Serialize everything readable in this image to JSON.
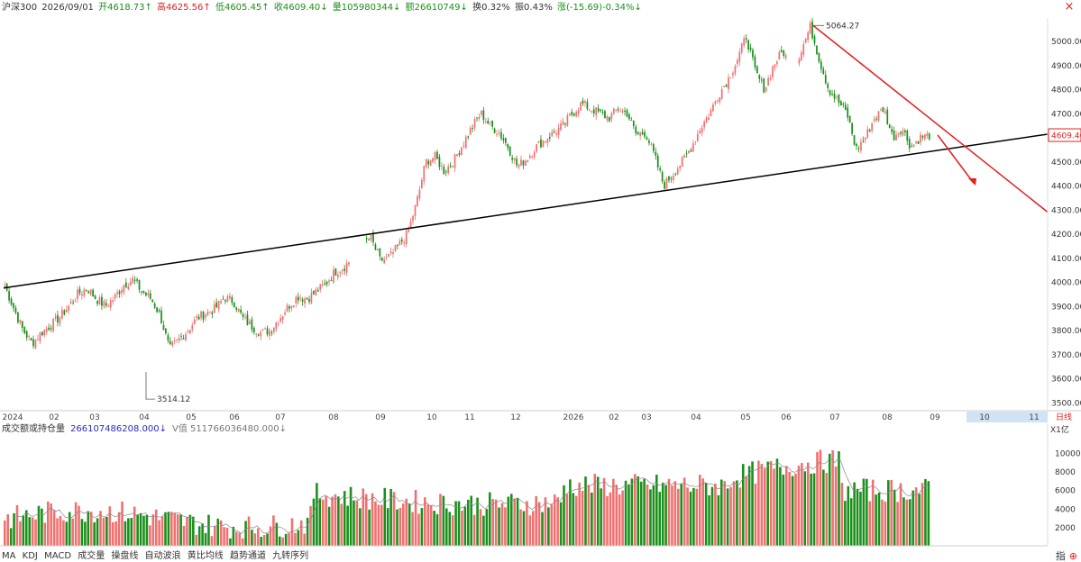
{
  "header": {
    "symbol": "沪深300",
    "date": "2026/09/01",
    "open": "开4618.73↑",
    "high": "高4625.56↑",
    "low": "低4605.45↑",
    "close": "收4609.40↓",
    "volume": "量105980344↓",
    "amount": "额26610749↓",
    "turnover": "换0.32%",
    "amplitude": "振0.43%",
    "change": "涨(-15.69)-0.34%↓"
  },
  "colors": {
    "up": "#f07070",
    "down": "#1a8f1a",
    "trend_black": "#000000",
    "trend_red": "#e02020",
    "price_tag": "#e02020"
  },
  "chart_data": [
    {
      "type": "candlestick",
      "title": "",
      "ylim": [
        3480,
        5110
      ],
      "y_ticks": [
        3500,
        3600,
        3700,
        3800,
        3900,
        4000,
        4100,
        4200,
        4300,
        4400,
        4500,
        4600,
        4700,
        4800,
        4900,
        5000
      ],
      "x_ticks": [
        "2024",
        "02",
        "03",
        "04",
        "05",
        "06",
        "07",
        "08",
        "09",
        "10",
        "11",
        "12",
        "2026",
        "02",
        "03",
        "04",
        "05",
        "06",
        "07",
        "08",
        "09",
        "10",
        "11"
      ],
      "annotations": {
        "high": 5064.27,
        "low": 3514.12,
        "last_price": "4609.40"
      },
      "series": [
        {
          "values": [
            3985,
            3890,
            3800,
            3745,
            3790,
            3820,
            3855,
            3900,
            3950,
            3975,
            3930,
            3900,
            3935,
            3990,
            4010,
            3960,
            3930,
            3860,
            3720,
            3760,
            3800,
            3850,
            3870,
            3890,
            3935,
            3920,
            3850,
            3815,
            3790,
            3800,
            3850,
            3900,
            3940,
            3930,
            3960,
            3990,
            4040,
            4060,
            4100,
            4160,
            4180,
            4090,
            4100,
            4150,
            4200,
            4330,
            4500,
            4520,
            4460,
            4500,
            4570,
            4640,
            4700,
            4650,
            4620,
            4560,
            4480,
            4510,
            4560,
            4590,
            4620,
            4650,
            4700,
            4740,
            4720,
            4700,
            4680,
            4720,
            4700,
            4610,
            4620,
            4520,
            4400,
            4450,
            4500,
            4560,
            4640,
            4700,
            4780,
            4840,
            4920,
            5020,
            4870,
            4800,
            4900,
            4960,
            4880,
            4960,
            5060,
            4920,
            4800,
            4750,
            4700,
            4550,
            4600,
            4680,
            4720,
            4600,
            4640,
            4560,
            4600,
            4609
          ]
        }
      ],
      "trendlines": [
        "support",
        "resistance",
        "projection-arrow"
      ]
    },
    {
      "type": "bar",
      "title": "成交额或持仓量",
      "ylim": [
        0,
        11000
      ],
      "y_ticks": [
        2000,
        4000,
        6000,
        8000,
        10000
      ],
      "unit": "X1亿"
    }
  ],
  "period_tab": "日线",
  "right_axis_labels": [
    "10",
    "11"
  ],
  "volume_header": {
    "label": "成交额或持仓量",
    "value": "266107486208.000↓",
    "v_label": "V值 511766036480.000↓"
  },
  "indicators": [
    "MA",
    "KDJ",
    "MACD",
    "成交量",
    "操盘线",
    "自动波浪",
    "黄比均线",
    "趋势通道",
    "九转序列"
  ],
  "right_tools": {
    "zhi": "指",
    "plus_icon": "⊕"
  },
  "close_icon_glyph": "×"
}
